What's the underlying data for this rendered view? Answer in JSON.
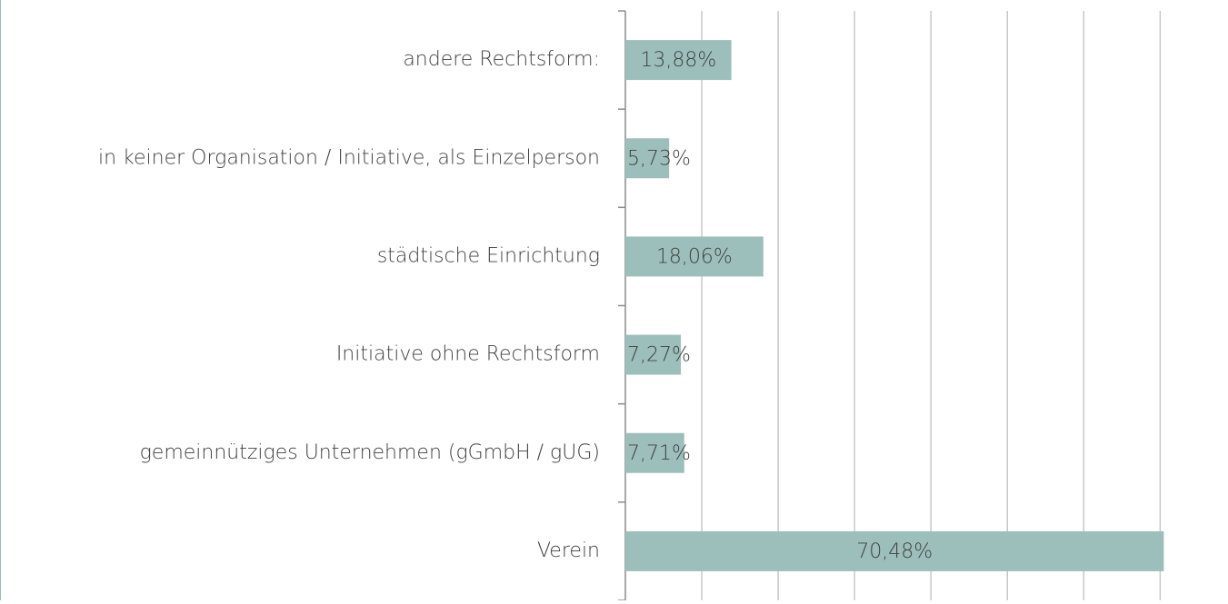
{
  "chart_data": {
    "type": "barh",
    "categories": [
      "andere Rechtsform:",
      "in keiner Organisation / Initiative, als Einzelperson",
      "städtische Einrichtung",
      "Initiative ohne Rechtsform",
      "gemeinnütziges Unternehmen (gGmbH / gUG)",
      "Verein"
    ],
    "values": [
      13.88,
      5.73,
      18.06,
      7.27,
      7.71,
      70.48
    ],
    "value_labels": [
      "13,88%",
      "5,73%",
      "18,06%",
      "7,27%",
      "7,71%",
      "70,48%"
    ],
    "color": "#9dbfbc",
    "xlim": [
      0,
      79
    ],
    "xticks": [
      0,
      10,
      20,
      30,
      40,
      50,
      60,
      70
    ],
    "grid": true
  }
}
